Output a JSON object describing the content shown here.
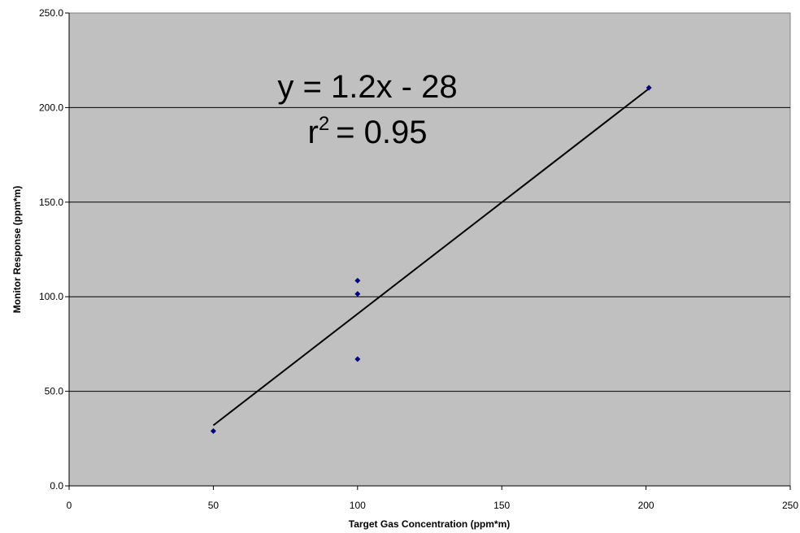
{
  "chart_data": {
    "type": "scatter",
    "xlabel": "Target Gas Concentration (ppm*m)",
    "ylabel": "Monitor Response (ppm*m)",
    "xlim": [
      0,
      250
    ],
    "ylim": [
      0,
      250
    ],
    "xticks": [
      0,
      50,
      100,
      150,
      200,
      250
    ],
    "yticks": [
      0,
      50,
      100,
      150,
      200,
      250
    ],
    "xtick_labels": [
      "0",
      "50",
      "100",
      "150",
      "200",
      "250"
    ],
    "ytick_labels": [
      "0.0",
      "50.0",
      "100.0",
      "150.0",
      "200.0",
      "250.0"
    ],
    "grid": "horizontal",
    "plot_background": "#c0c0c0",
    "series": [
      {
        "color": "#000080",
        "marker": "diamond",
        "points": [
          {
            "x": 50,
            "y": 29.0
          },
          {
            "x": 100,
            "y": 67.0
          },
          {
            "x": 100,
            "y": 101.5
          },
          {
            "x": 100,
            "y": 108.5
          },
          {
            "x": 201,
            "y": 210.5
          }
        ]
      }
    ],
    "trendline": {
      "type": "linear",
      "color": "#000000",
      "x_range": [
        50,
        201
      ],
      "y_values": [
        32.0,
        210.0
      ],
      "equation_text": "y = 1.2x - 28",
      "r2_label_main": "r",
      "r2_label_sup": "2",
      "r2_value_text": "= 0.95"
    }
  }
}
